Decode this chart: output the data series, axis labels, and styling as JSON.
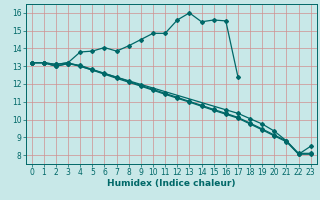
{
  "background_color": "#c8e8e8",
  "grid_color": "#d09090",
  "line_color": "#006868",
  "xlabel": "Humidex (Indice chaleur)",
  "xlabel_fontsize": 6.5,
  "tick_fontsize": 5.5,
  "xlim": [
    -0.5,
    23.5
  ],
  "ylim": [
    7.5,
    16.5
  ],
  "xticks": [
    0,
    1,
    2,
    3,
    4,
    5,
    6,
    7,
    8,
    9,
    10,
    11,
    12,
    13,
    14,
    15,
    16,
    17,
    18,
    19,
    20,
    21,
    22,
    23
  ],
  "yticks": [
    8,
    9,
    10,
    11,
    12,
    13,
    14,
    15,
    16
  ],
  "line1_x": [
    0,
    1,
    2,
    3,
    4,
    5,
    6,
    7,
    8,
    9,
    10,
    11,
    12,
    13,
    14,
    15,
    16,
    17,
    18,
    19,
    20,
    21,
    22,
    23
  ],
  "line1_y": [
    13.2,
    13.2,
    13.1,
    13.2,
    13.8,
    13.85,
    14.05,
    13.85,
    14.15,
    14.5,
    14.85,
    14.85,
    15.6,
    16.0,
    15.5,
    15.6,
    15.55,
    12.4,
    null,
    null,
    null,
    null,
    null,
    null
  ],
  "line2_x": [
    0,
    1,
    2,
    3,
    16,
    17,
    18,
    19,
    20,
    21,
    22,
    23
  ],
  "line2_y": [
    13.2,
    13.2,
    13.1,
    13.2,
    10.55,
    10.35,
    10.05,
    9.75,
    9.35,
    8.8,
    8.05,
    8.5
  ],
  "line3_x": [
    0,
    1,
    2,
    3,
    4,
    5,
    6,
    7,
    8,
    9,
    10,
    11,
    12,
    13,
    14,
    15,
    16,
    17,
    18,
    19,
    20,
    21,
    22,
    23
  ],
  "line3_y": [
    13.2,
    13.2,
    13.0,
    13.15,
    13.0,
    12.78,
    12.55,
    12.32,
    12.1,
    11.88,
    11.65,
    11.42,
    11.2,
    10.98,
    10.75,
    10.52,
    10.3,
    10.08,
    9.75,
    9.42,
    9.08,
    8.75,
    8.05,
    8.05
  ],
  "line4_x": [
    0,
    1,
    2,
    3,
    4,
    5,
    6,
    7,
    8,
    9,
    10,
    11,
    12,
    13,
    14,
    15,
    16,
    17,
    18,
    19,
    20,
    21,
    22,
    23
  ],
  "line4_y": [
    13.2,
    13.2,
    13.0,
    13.15,
    13.05,
    12.82,
    12.6,
    12.38,
    12.15,
    11.92,
    11.7,
    11.47,
    11.25,
    11.02,
    10.8,
    10.57,
    10.35,
    10.12,
    9.8,
    9.47,
    9.13,
    8.8,
    8.1,
    8.1
  ]
}
